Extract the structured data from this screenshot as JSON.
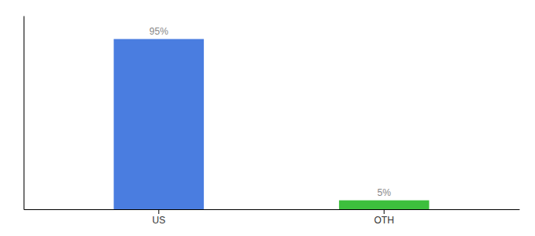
{
  "chart_data": {
    "type": "bar",
    "categories": [
      "US",
      "OTH"
    ],
    "values": [
      95,
      5
    ],
    "value_labels": [
      "95%",
      "5%"
    ],
    "colors": [
      "#4a7de0",
      "#3dbf3d"
    ],
    "ylim": [
      0,
      108
    ],
    "data_labels": true,
    "tick_labels": "x"
  }
}
